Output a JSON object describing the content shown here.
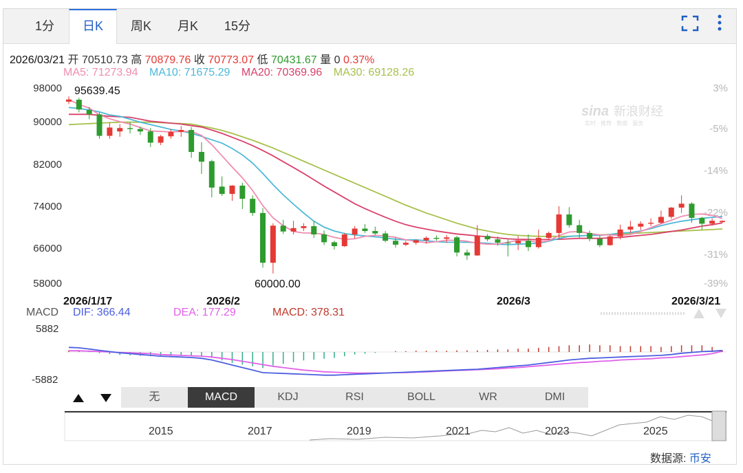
{
  "tabs": [
    {
      "label": "1分"
    },
    {
      "label": "日K"
    },
    {
      "label": "周K"
    },
    {
      "label": "月K"
    },
    {
      "label": "15分"
    }
  ],
  "active_tab": "日K",
  "icons": {
    "fullscreen": "fullscreen-icon",
    "more": "more-vertical-icon"
  },
  "ohlc_bar": {
    "date": "2026/03/21",
    "open_label": "开",
    "open": "70510.73",
    "high_label": "高",
    "high": "70879.76",
    "close_label": "收",
    "close": "70773.07",
    "low_label": "低",
    "low": "70431.67",
    "volume_label": "量",
    "volume": "0",
    "change": "0.37%"
  },
  "ma_bar": {
    "ma5": "MA5: 71273.94",
    "ma10": "MA10: 71675.29",
    "ma20": "MA20: 70369.96",
    "ma30": "MA30: 69128.26"
  },
  "colors": {
    "up": "#e53935",
    "down": "#2e9b2e",
    "ma5": "#f08cb0",
    "ma10": "#4cb8d8",
    "ma20": "#d9406a",
    "ma30": "#a6c04a",
    "dif": "#4c5ee0",
    "dea": "#e060e8",
    "macd_label": "#c0392b",
    "accent": "#1f5fc4"
  },
  "watermark": {
    "brand": "新浪财经",
    "sub": "实时 · 推荐 · 数据 · 服务"
  },
  "chart_data": {
    "type": "candlestick",
    "y_axis_labels": [
      "98000",
      "90000",
      "82000",
      "74000",
      "66000",
      "58000"
    ],
    "pct_axis_labels": [
      "3%",
      "-5%",
      "-14%",
      "-22%",
      "-31%",
      "-39%"
    ],
    "ylim": [
      58000,
      98000
    ],
    "x_axis_labels": [
      "2026/1/17",
      "2026/2",
      "2026/3",
      "2026/3/21"
    ],
    "annotations": {
      "max": "95639.45",
      "min": "60000.00"
    },
    "candles": [
      {
        "o": 95200,
        "h": 96300,
        "l": 94700,
        "c": 95639
      },
      {
        "o": 95600,
        "h": 96000,
        "l": 93000,
        "c": 93600
      },
      {
        "o": 93500,
        "h": 94100,
        "l": 91600,
        "c": 92600
      },
      {
        "o": 92600,
        "h": 93000,
        "l": 87600,
        "c": 88200
      },
      {
        "o": 88200,
        "h": 90900,
        "l": 87600,
        "c": 89900
      },
      {
        "o": 89100,
        "h": 90600,
        "l": 88000,
        "c": 89800
      },
      {
        "o": 89800,
        "h": 91000,
        "l": 88700,
        "c": 89600
      },
      {
        "o": 89600,
        "h": 90100,
        "l": 88400,
        "c": 89100
      },
      {
        "o": 89100,
        "h": 89800,
        "l": 85900,
        "c": 86800
      },
      {
        "o": 86800,
        "h": 88400,
        "l": 86300,
        "c": 88100
      },
      {
        "o": 88100,
        "h": 89600,
        "l": 87600,
        "c": 89000
      },
      {
        "o": 89000,
        "h": 90200,
        "l": 88000,
        "c": 89400
      },
      {
        "o": 89400,
        "h": 90000,
        "l": 83700,
        "c": 84900
      },
      {
        "o": 84900,
        "h": 86900,
        "l": 80400,
        "c": 82900
      },
      {
        "o": 83000,
        "h": 83300,
        "l": 75600,
        "c": 77600
      },
      {
        "o": 77800,
        "h": 79900,
        "l": 75900,
        "c": 76300
      },
      {
        "o": 76300,
        "h": 78100,
        "l": 74900,
        "c": 78000
      },
      {
        "o": 78000,
        "h": 78600,
        "l": 73200,
        "c": 75300
      },
      {
        "o": 75300,
        "h": 76000,
        "l": 71800,
        "c": 72400
      },
      {
        "o": 72400,
        "h": 73400,
        "l": 61200,
        "c": 62200
      },
      {
        "o": 62200,
        "h": 70300,
        "l": 60000,
        "c": 69800
      },
      {
        "o": 69800,
        "h": 71000,
        "l": 68100,
        "c": 68600
      },
      {
        "o": 68600,
        "h": 70800,
        "l": 68000,
        "c": 69300
      },
      {
        "o": 69300,
        "h": 70300,
        "l": 68700,
        "c": 69700
      },
      {
        "o": 69700,
        "h": 70700,
        "l": 67300,
        "c": 68000
      },
      {
        "o": 68000,
        "h": 68800,
        "l": 65800,
        "c": 66400
      },
      {
        "o": 66400,
        "h": 66700,
        "l": 64900,
        "c": 65600
      },
      {
        "o": 65600,
        "h": 68300,
        "l": 65400,
        "c": 68000
      },
      {
        "o": 68000,
        "h": 69700,
        "l": 67200,
        "c": 69200
      },
      {
        "o": 69200,
        "h": 70100,
        "l": 68300,
        "c": 68700
      },
      {
        "o": 68700,
        "h": 69600,
        "l": 67900,
        "c": 68200
      },
      {
        "o": 68200,
        "h": 68700,
        "l": 66400,
        "c": 66700
      },
      {
        "o": 66700,
        "h": 67400,
        "l": 65300,
        "c": 65900
      },
      {
        "o": 65900,
        "h": 66700,
        "l": 65600,
        "c": 66300
      },
      {
        "o": 66300,
        "h": 67000,
        "l": 65900,
        "c": 66800
      },
      {
        "o": 66800,
        "h": 67600,
        "l": 66100,
        "c": 67300
      },
      {
        "o": 67300,
        "h": 67800,
        "l": 66700,
        "c": 67100
      },
      {
        "o": 67100,
        "h": 67900,
        "l": 66300,
        "c": 67400
      },
      {
        "o": 67400,
        "h": 67700,
        "l": 63500,
        "c": 64300
      },
      {
        "o": 64300,
        "h": 64900,
        "l": 62800,
        "c": 63700
      },
      {
        "o": 63700,
        "h": 69900,
        "l": 63600,
        "c": 67700
      },
      {
        "o": 67700,
        "h": 68100,
        "l": 66600,
        "c": 67000
      },
      {
        "o": 67000,
        "h": 67600,
        "l": 65700,
        "c": 66300
      },
      {
        "o": 66300,
        "h": 67000,
        "l": 63500,
        "c": 66200
      },
      {
        "o": 66200,
        "h": 67700,
        "l": 64800,
        "c": 66700
      },
      {
        "o": 66700,
        "h": 68000,
        "l": 64600,
        "c": 65400
      },
      {
        "o": 65400,
        "h": 69000,
        "l": 65100,
        "c": 67300
      },
      {
        "o": 67300,
        "h": 68600,
        "l": 66900,
        "c": 68300
      },
      {
        "o": 68300,
        "h": 73800,
        "l": 67200,
        "c": 72100
      },
      {
        "o": 72100,
        "h": 73600,
        "l": 69400,
        "c": 69900
      },
      {
        "o": 69900,
        "h": 71000,
        "l": 67300,
        "c": 68300
      },
      {
        "o": 68300,
        "h": 68800,
        "l": 66600,
        "c": 67100
      },
      {
        "o": 67100,
        "h": 67800,
        "l": 65400,
        "c": 65800
      },
      {
        "o": 65800,
        "h": 67800,
        "l": 65700,
        "c": 67600
      },
      {
        "o": 67600,
        "h": 70000,
        "l": 67000,
        "c": 69000
      },
      {
        "o": 69000,
        "h": 70800,
        "l": 68300,
        "c": 69600
      },
      {
        "o": 69600,
        "h": 70700,
        "l": 68900,
        "c": 70200
      },
      {
        "o": 70200,
        "h": 71300,
        "l": 69700,
        "c": 70400
      },
      {
        "o": 70400,
        "h": 72900,
        "l": 70100,
        "c": 71600
      },
      {
        "o": 71600,
        "h": 73600,
        "l": 71200,
        "c": 73500
      },
      {
        "o": 73500,
        "h": 76000,
        "l": 72400,
        "c": 74300
      },
      {
        "o": 74300,
        "h": 74600,
        "l": 70400,
        "c": 71400
      },
      {
        "o": 71400,
        "h": 71600,
        "l": 69000,
        "c": 70200
      },
      {
        "o": 70200,
        "h": 71300,
        "l": 69800,
        "c": 70800
      },
      {
        "o": 70511,
        "h": 70880,
        "l": 70432,
        "c": 70773
      }
    ],
    "ma5": [
      95639,
      94600,
      93900,
      92500,
      91700,
      91100,
      90600,
      89900,
      89200,
      89100,
      89000,
      89100,
      89100,
      88300,
      86400,
      84100,
      81800,
      79600,
      77000,
      73900,
      71400,
      69800,
      68600,
      68300,
      68300,
      68000,
      67400,
      67000,
      67100,
      67600,
      67800,
      67700,
      67400,
      66900,
      66600,
      66300,
      66500,
      66800,
      66800,
      66600,
      66200,
      66000,
      66000,
      66400,
      66800,
      66700,
      66400,
      66700,
      67800,
      68500,
      68600,
      68200,
      67900,
      67900,
      67800,
      68000,
      68600,
      69400,
      70200,
      70900,
      71700,
      72100,
      72200,
      71900,
      71274
    ],
    "ma10": [
      94000,
      93800,
      93500,
      93100,
      92500,
      92200,
      91600,
      91000,
      90500,
      90000,
      89500,
      89200,
      88700,
      88100,
      87400,
      86700,
      85600,
      84300,
      82600,
      80500,
      78200,
      76100,
      74200,
      72400,
      70700,
      69500,
      68700,
      68200,
      67900,
      67700,
      67500,
      67300,
      67000,
      66900,
      66900,
      66700,
      66500,
      66400,
      66400,
      66400,
      66300,
      66200,
      66000,
      65900,
      66000,
      66100,
      66200,
      66600,
      67200,
      67600,
      67700,
      67800,
      67800,
      68000,
      68300,
      68400,
      68700,
      69200,
      69800,
      70300,
      70700,
      71000,
      71300,
      71500,
      71675
    ],
    "ma20": [
      92600,
      92600,
      92600,
      92400,
      92200,
      92100,
      92000,
      91600,
      91200,
      91000,
      90800,
      90600,
      90300,
      90000,
      89400,
      88700,
      87900,
      87100,
      86200,
      85200,
      84100,
      82900,
      81700,
      80500,
      79200,
      77900,
      76700,
      75500,
      74300,
      73300,
      72400,
      71500,
      70700,
      70000,
      69500,
      69100,
      68700,
      68400,
      68100,
      67900,
      67700,
      67500,
      67300,
      67100,
      67000,
      67000,
      66900,
      67000,
      67000,
      67100,
      67200,
      67200,
      67200,
      67300,
      67400,
      67600,
      67800,
      68000,
      68300,
      68600,
      68900,
      69300,
      69700,
      70000,
      70370
    ],
    "ma30": [
      90500,
      90600,
      90700,
      90800,
      90900,
      91000,
      91000,
      91000,
      91000,
      90900,
      90800,
      90700,
      90600,
      90200,
      89800,
      89300,
      88700,
      88000,
      87300,
      86500,
      85700,
      84800,
      83900,
      83000,
      82100,
      81200,
      80300,
      79400,
      78500,
      77600,
      76700,
      75800,
      74900,
      74000,
      73200,
      72400,
      71700,
      71000,
      70300,
      69700,
      69100,
      68700,
      68300,
      68000,
      67800,
      67700,
      67600,
      67600,
      67600,
      67600,
      67700,
      67800,
      67900,
      68000,
      68100,
      68200,
      68300,
      68400,
      68500,
      68600,
      68700,
      68800,
      68900,
      69000,
      69128
    ],
    "macd_panel": {
      "labels": {
        "name": "MACD",
        "dif": "DIF: 366.44",
        "dea": "DEA: 177.29",
        "macd": "MACD: 378.31"
      },
      "ylim": [
        -5882,
        5882
      ],
      "y_axis_labels": [
        "5882",
        "-5882"
      ],
      "dif": [
        1100,
        1000,
        700,
        400,
        100,
        -200,
        -400,
        -600,
        -800,
        -1000,
        -1100,
        -1200,
        -1300,
        -1500,
        -1900,
        -2500,
        -3100,
        -3700,
        -4300,
        -4900,
        -5000,
        -5100,
        -5200,
        -5300,
        -5400,
        -5500,
        -5500,
        -5400,
        -5300,
        -5200,
        -5100,
        -5000,
        -4900,
        -4800,
        -4700,
        -4600,
        -4500,
        -4400,
        -4300,
        -4200,
        -4100,
        -3900,
        -3700,
        -3500,
        -3300,
        -3100,
        -2800,
        -2500,
        -2200,
        -1900,
        -1700,
        -1500,
        -1400,
        -1300,
        -1200,
        -1100,
        -1000,
        -900,
        -800,
        -600,
        -300,
        -100,
        100,
        200,
        366
      ],
      "dea": [
        300,
        300,
        200,
        100,
        0,
        -100,
        -200,
        -300,
        -400,
        -600,
        -700,
        -800,
        -900,
        -1000,
        -1200,
        -1500,
        -1800,
        -2200,
        -2600,
        -3000,
        -3400,
        -3700,
        -4000,
        -4300,
        -4500,
        -4700,
        -4800,
        -4900,
        -5000,
        -5000,
        -5000,
        -5000,
        -4900,
        -4900,
        -4800,
        -4700,
        -4600,
        -4500,
        -4400,
        -4300,
        -4200,
        -4100,
        -4000,
        -3800,
        -3700,
        -3500,
        -3300,
        -3100,
        -2900,
        -2700,
        -2500,
        -2400,
        -2200,
        -2100,
        -1900,
        -1800,
        -1700,
        -1600,
        -1400,
        -1300,
        -1100,
        -900,
        -700,
        -400,
        177
      ],
      "macd": [
        400,
        300,
        100,
        -300,
        -500,
        -700,
        -800,
        -900,
        -1000,
        -900,
        -900,
        -800,
        -800,
        -1000,
        -1400,
        -2000,
        -2600,
        -3000,
        -3400,
        -3800,
        -3200,
        -2800,
        -2400,
        -2000,
        -1800,
        -1600,
        -1400,
        -1000,
        -600,
        -400,
        -200,
        0,
        200,
        200,
        300,
        300,
        300,
        300,
        400,
        400,
        400,
        500,
        600,
        600,
        800,
        800,
        1000,
        1200,
        1400,
        1600,
        1600,
        1800,
        1600,
        1600,
        1400,
        1400,
        1400,
        1400,
        1200,
        1400,
        1600,
        1600,
        1600,
        1200,
        378
      ]
    }
  },
  "indicator_tabs": [
    "无",
    "MACD",
    "KDJ",
    "RSI",
    "BOLL",
    "WR",
    "DMI"
  ],
  "active_indicator": "MACD",
  "navigator": {
    "years": [
      "2015",
      "2017",
      "2019",
      "2021",
      "2023",
      "2025"
    ],
    "arrow_up": "triangle-up-icon",
    "arrow_down": "triangle-down-icon"
  },
  "footer": {
    "source_label": "数据源:",
    "source": "币安"
  }
}
